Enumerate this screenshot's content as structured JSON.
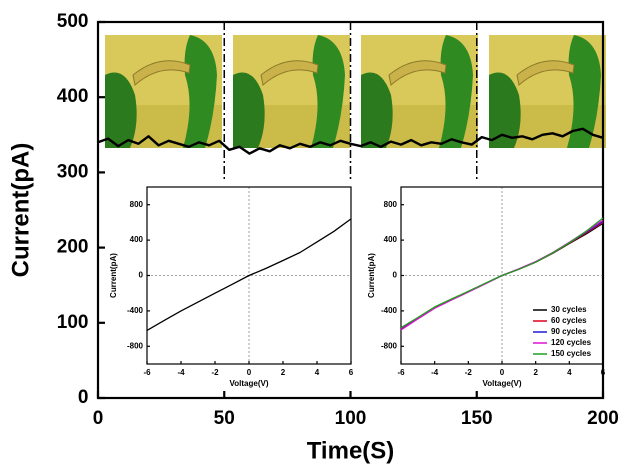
{
  "chart_data": [
    {
      "type": "line",
      "xlabel": "Time(S)",
      "ylabel": "Current(pA)",
      "color": "#000000",
      "xlim": [
        0,
        200
      ],
      "ylim": [
        0,
        500
      ],
      "xticks": [
        0,
        50,
        100,
        150,
        200
      ],
      "yticks": [
        0,
        100,
        200,
        300,
        400,
        500
      ],
      "vlines": [
        50,
        100,
        150
      ],
      "x": [
        0,
        4,
        8,
        12,
        16,
        20,
        24,
        28,
        32,
        36,
        40,
        44,
        48,
        52,
        56,
        60,
        64,
        68,
        72,
        76,
        80,
        84,
        88,
        92,
        96,
        100,
        104,
        108,
        112,
        116,
        120,
        124,
        128,
        132,
        136,
        140,
        144,
        148,
        152,
        156,
        160,
        164,
        168,
        172,
        176,
        180,
        184,
        188,
        192,
        196,
        200
      ],
      "values": [
        340,
        345,
        335,
        343,
        338,
        348,
        336,
        342,
        338,
        334,
        340,
        336,
        342,
        330,
        334,
        325,
        332,
        328,
        336,
        332,
        338,
        334,
        340,
        336,
        342,
        338,
        335,
        340,
        334,
        341,
        337,
        343,
        336,
        340,
        338,
        344,
        340,
        337,
        347,
        343,
        350,
        346,
        348,
        344,
        350,
        352,
        348,
        355,
        358,
        350,
        346
      ]
    },
    {
      "type": "line",
      "xlabel": "Voltage(V)",
      "ylabel": "Current(pA)",
      "zero_lines": true,
      "xlim": [
        -6,
        6
      ],
      "ylim": [
        -1000,
        1000
      ],
      "xticks": [
        -6,
        -4,
        -2,
        0,
        2,
        4,
        6
      ],
      "yticks": [
        -800,
        -400,
        0,
        400,
        800
      ],
      "x": [
        -6,
        -5,
        -4,
        -3,
        -2,
        -1,
        0,
        1,
        2,
        3,
        4,
        5,
        6
      ],
      "series": [
        {
          "color": "#000000",
          "values": [
            -620,
            -510,
            -400,
            -300,
            -200,
            -100,
            0,
            80,
            170,
            260,
            380,
            500,
            640
          ]
        }
      ]
    },
    {
      "type": "line",
      "xlabel": "Voltage(V)",
      "ylabel": "Current(pA)",
      "zero_lines": true,
      "legend": "lower right",
      "xlim": [
        -6,
        6
      ],
      "ylim": [
        -1000,
        1000
      ],
      "xticks": [
        -6,
        -4,
        -2,
        0,
        2,
        4,
        6
      ],
      "yticks": [
        -800,
        -400,
        0,
        400,
        800
      ],
      "x": [
        -6,
        -5,
        -4,
        -3,
        -2,
        -1,
        0,
        1,
        2,
        3,
        4,
        5,
        6
      ],
      "series": [
        {
          "name": "30 cycles",
          "color": "#000000",
          "values": [
            -600,
            -480,
            -360,
            -270,
            -180,
            -90,
            0,
            70,
            150,
            250,
            360,
            470,
            590
          ]
        },
        {
          "name": "60 cycles",
          "color": "#e0001b",
          "values": [
            -605,
            -485,
            -365,
            -272,
            -182,
            -92,
            0,
            72,
            152,
            252,
            365,
            480,
            600
          ]
        },
        {
          "name": "90 cycles",
          "color": "#1a1ad0",
          "values": [
            -610,
            -488,
            -368,
            -275,
            -185,
            -93,
            0,
            73,
            155,
            255,
            370,
            490,
            610
          ]
        },
        {
          "name": "120 cycles",
          "color": "#e010d0",
          "values": [
            -615,
            -490,
            -370,
            -278,
            -187,
            -95,
            0,
            75,
            157,
            258,
            375,
            500,
            625
          ]
        },
        {
          "name": "150 cycles",
          "color": "#20a020",
          "values": [
            -590,
            -475,
            -355,
            -265,
            -178,
            -88,
            0,
            70,
            150,
            255,
            370,
            500,
            650
          ]
        }
      ]
    }
  ]
}
